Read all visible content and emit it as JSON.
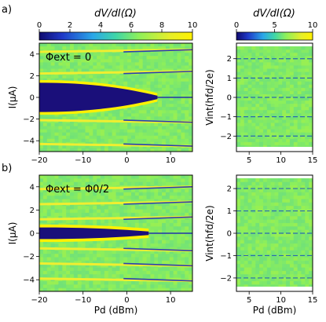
{
  "colorbars": [
    {
      "label": "dV/dI(Ω)",
      "ticks": [
        "0",
        "2",
        "4",
        "6",
        "8",
        "10"
      ],
      "range": [
        0,
        10
      ],
      "colormap": "viridis"
    },
    {
      "label": "dV/dI(Ω)",
      "ticks": [
        "0",
        "5",
        "10"
      ],
      "range": [
        0,
        10
      ],
      "colormap": "viridis"
    }
  ],
  "panel_labels": [
    "a)",
    "b)"
  ],
  "chart_data": [
    {
      "type": "heatmap",
      "panel": "a-left",
      "annotation": "Φext = 0",
      "xlabel": "",
      "ylabel": "I(μA)",
      "xlim": [
        -20,
        15
      ],
      "ylim": [
        -5,
        5
      ],
      "xticks": [
        "−20",
        "−10",
        "0",
        "10"
      ],
      "yticks": [
        "4",
        "2",
        "0",
        "−2",
        "−4"
      ],
      "features": {
        "blob_halfwidth_uA": 1.2,
        "blob_end_dBm": 7,
        "steps_uA": [
          4.2,
          2.2,
          -2.1,
          -4.3
        ]
      }
    },
    {
      "type": "heatmap",
      "panel": "a-right",
      "xlabel": "",
      "ylabel": "Vint(hfd/2e)",
      "xlim": [
        3,
        15
      ],
      "ylim": [
        -2.8,
        2.8
      ],
      "xticks": [
        "5",
        "10",
        "15"
      ],
      "yticks": [
        "2",
        "1",
        "0",
        "−1",
        "−2"
      ],
      "features": {
        "lines": [
          2,
          1,
          0,
          -1,
          -2
        ]
      }
    },
    {
      "type": "heatmap",
      "panel": "b-left",
      "annotation": "Φext = Φ0/2",
      "xlabel": "Pd (dBm)",
      "ylabel": "I(μA)",
      "xlim": [
        -20,
        15
      ],
      "ylim": [
        -5,
        5
      ],
      "xticks": [
        "−20",
        "−10",
        "0",
        "10"
      ],
      "yticks": [
        "4",
        "2",
        "0",
        "−2",
        "−4"
      ],
      "features": {
        "blob_halfwidth_uA": 0.35,
        "blob_end_dBm": 5,
        "steps_uA": [
          3.8,
          2.5,
          1.2,
          -1.3,
          -2.6,
          -3.9
        ]
      }
    },
    {
      "type": "heatmap",
      "panel": "b-right",
      "xlabel": "Pd (dBm)",
      "ylabel": "Vint(hfd/2e)",
      "xlim": [
        3,
        15
      ],
      "ylim": [
        -2.6,
        2.6
      ],
      "xticks": [
        "5",
        "10",
        "15"
      ],
      "yticks": [
        "2",
        "1",
        "0",
        "−1",
        "−2"
      ],
      "features": {
        "lines": [
          2,
          1,
          0,
          -1,
          -2
        ]
      }
    }
  ]
}
